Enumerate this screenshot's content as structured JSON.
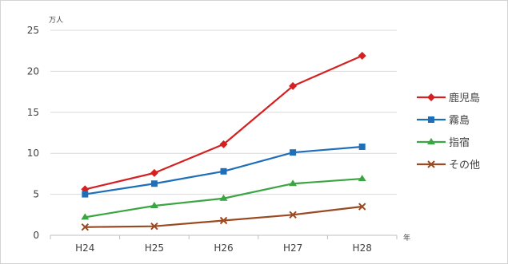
{
  "chart_data": {
    "type": "line",
    "ylabel": "万人",
    "xlabel": "年",
    "categories": [
      "H24",
      "H25",
      "H26",
      "H27",
      "H28"
    ],
    "ylim": [
      0,
      25
    ],
    "yticks": [
      0,
      5,
      10,
      15,
      20,
      25
    ],
    "grid": true,
    "legend_position": "right",
    "series": [
      {
        "name": "鹿児島",
        "values": [
          5.6,
          7.6,
          11.1,
          18.2,
          21.9
        ],
        "color": "#d42020",
        "marker": "diamond"
      },
      {
        "name": "霧島",
        "values": [
          5.0,
          6.3,
          7.8,
          10.1,
          10.8
        ],
        "color": "#1f6fb8",
        "marker": "square"
      },
      {
        "name": "指宿",
        "values": [
          2.2,
          3.6,
          4.5,
          6.3,
          6.9
        ],
        "color": "#3aa542",
        "marker": "triangle"
      },
      {
        "name": "その他",
        "values": [
          1.0,
          1.1,
          1.8,
          2.5,
          3.5
        ],
        "color": "#9a4a22",
        "marker": "x"
      }
    ]
  }
}
